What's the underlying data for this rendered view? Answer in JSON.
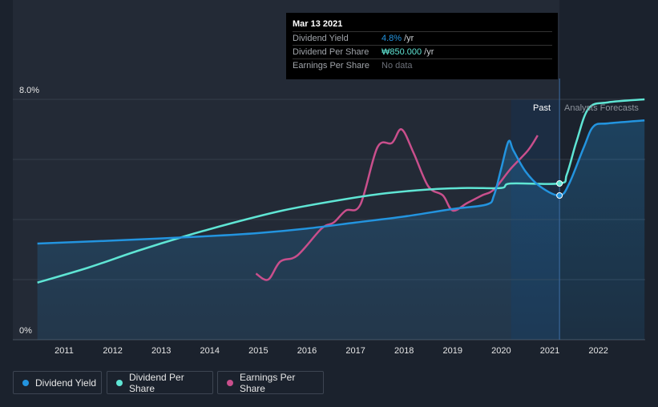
{
  "chart_data": {
    "type": "line",
    "y_axis": {
      "min_label": "0%",
      "max_label": "8.0%"
    },
    "x_axis": {
      "ticks": [
        "2011",
        "2012",
        "2013",
        "2014",
        "2015",
        "2016",
        "2017",
        "2018",
        "2019",
        "2020",
        "2021",
        "2022"
      ]
    },
    "regions": {
      "past_label": "Past",
      "forecast_label": "Analysts Forecasts"
    },
    "series": [
      {
        "key": "dividend_yield",
        "name": "Dividend Yield",
        "color": "#2394df",
        "points": [
          [
            2010.45,
            3.2
          ],
          [
            2012.0,
            3.3
          ],
          [
            2014.0,
            3.45
          ],
          [
            2015.0,
            3.55
          ],
          [
            2016.0,
            3.7
          ],
          [
            2017.0,
            3.9
          ],
          [
            2018.0,
            4.1
          ],
          [
            2019.0,
            4.35
          ],
          [
            2019.7,
            4.5
          ],
          [
            2019.85,
            4.8
          ],
          [
            2020.0,
            5.7
          ],
          [
            2020.15,
            6.6
          ],
          [
            2020.25,
            6.3
          ],
          [
            2020.5,
            5.6
          ],
          [
            2020.8,
            5.1
          ],
          [
            2021.2,
            4.8
          ],
          [
            2021.4,
            5.2
          ],
          [
            2021.7,
            6.4
          ],
          [
            2021.9,
            7.1
          ],
          [
            2022.2,
            7.2
          ],
          [
            2022.95,
            7.3
          ]
        ]
      },
      {
        "key": "dividend_per_share",
        "name": "Dividend Per Share",
        "color": "#5fe5d4",
        "points": [
          [
            2010.45,
            1.9
          ],
          [
            2011.5,
            2.4
          ],
          [
            2012.5,
            2.95
          ],
          [
            2013.5,
            3.45
          ],
          [
            2014.5,
            3.9
          ],
          [
            2015.5,
            4.3
          ],
          [
            2016.5,
            4.6
          ],
          [
            2017.5,
            4.85
          ],
          [
            2018.5,
            5.0
          ],
          [
            2019.3,
            5.05
          ],
          [
            2020.0,
            5.05
          ],
          [
            2020.2,
            5.2
          ],
          [
            2021.2,
            5.2
          ],
          [
            2021.35,
            5.5
          ],
          [
            2021.55,
            6.6
          ],
          [
            2021.8,
            7.7
          ],
          [
            2022.2,
            7.9
          ],
          [
            2022.95,
            8.0
          ]
        ]
      },
      {
        "key": "earnings_per_share",
        "name": "Earnings Per Share",
        "color": "#c94f8c",
        "points": [
          [
            2014.95,
            2.2
          ],
          [
            2015.2,
            2.0
          ],
          [
            2015.45,
            2.6
          ],
          [
            2015.8,
            2.8
          ],
          [
            2016.3,
            3.7
          ],
          [
            2016.55,
            3.9
          ],
          [
            2016.8,
            4.3
          ],
          [
            2017.1,
            4.5
          ],
          [
            2017.45,
            6.4
          ],
          [
            2017.75,
            6.55
          ],
          [
            2017.95,
            7.0
          ],
          [
            2018.2,
            6.2
          ],
          [
            2018.5,
            5.1
          ],
          [
            2018.8,
            4.8
          ],
          [
            2019.0,
            4.3
          ],
          [
            2019.3,
            4.55
          ],
          [
            2019.6,
            4.8
          ],
          [
            2019.85,
            5.0
          ],
          [
            2020.2,
            5.7
          ],
          [
            2020.55,
            6.3
          ],
          [
            2020.75,
            6.8
          ]
        ]
      }
    ],
    "highlight": {
      "date": "Mar 13 2021",
      "x": 2021.2,
      "markers": {
        "dividend_yield": 4.8,
        "dividend_per_share": 5.2
      }
    }
  },
  "tooltip": {
    "date": "Mar 13 2021",
    "rows": [
      {
        "name": "Dividend Yield",
        "value": "4.8%",
        "unit": "/yr",
        "color": "#2394df"
      },
      {
        "name": "Dividend Per Share",
        "value": "₩850.000",
        "unit": "/yr",
        "color": "#5fe5d4"
      },
      {
        "name": "Earnings Per Share",
        "value": "No data",
        "unit": "",
        "color": "#6c7079"
      }
    ]
  },
  "legend": [
    {
      "label": "Dividend Yield",
      "color": "#2394df"
    },
    {
      "label": "Dividend Per Share",
      "color": "#5fe5d4"
    },
    {
      "label": "Earnings Per Share",
      "color": "#c94f8c"
    }
  ]
}
